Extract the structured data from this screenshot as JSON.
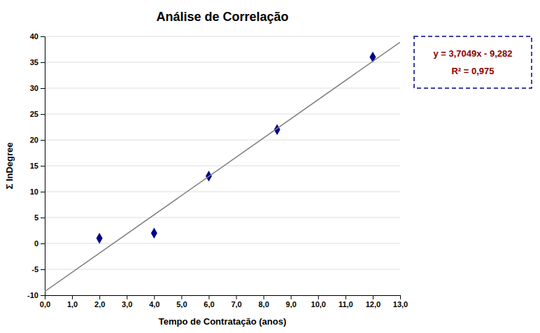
{
  "chart_data": {
    "type": "scatter",
    "title": "Análise de Correlação",
    "xlabel": "Tempo de Contratação (anos)",
    "ylabel": "Σ InDegree",
    "series": [
      {
        "type": "scatter",
        "marker": "diamond",
        "color": "#00008B",
        "x": [
          2.0,
          4.0,
          6.0,
          8.5,
          12.0
        ],
        "values": [
          1.0,
          2.0,
          13.0,
          22.0,
          36.0
        ]
      },
      {
        "type": "line",
        "line_style": "solid",
        "color": "#808080",
        "x": [
          0.0,
          13.0
        ],
        "values": [
          -9.282,
          38.8817
        ]
      }
    ],
    "annotations": [
      "y = 3,7049x - 9,282",
      "R² = 0,975"
    ],
    "xlim": [
      0.0,
      13.0
    ],
    "ylim": [
      -10,
      40
    ],
    "xticks": [
      {
        "value": 0.0,
        "label": "0,0"
      },
      {
        "value": 1.0,
        "label": "1,0"
      },
      {
        "value": 2.0,
        "label": "2,0"
      },
      {
        "value": 3.0,
        "label": "3,0"
      },
      {
        "value": 4.0,
        "label": "4,0"
      },
      {
        "value": 5.0,
        "label": "5,0"
      },
      {
        "value": 6.0,
        "label": "6,0"
      },
      {
        "value": 7.0,
        "label": "7,0"
      },
      {
        "value": 8.0,
        "label": "8,0"
      },
      {
        "value": 9.0,
        "label": "9,0"
      },
      {
        "value": 10.0,
        "label": "10,0"
      },
      {
        "value": 11.0,
        "label": "11,0"
      },
      {
        "value": 12.0,
        "label": "12,0"
      },
      {
        "value": 13.0,
        "label": "13,0"
      }
    ],
    "yticks": [
      -10,
      -5,
      0,
      5,
      10,
      15,
      20,
      25,
      30,
      35,
      40
    ],
    "grid": "y"
  }
}
